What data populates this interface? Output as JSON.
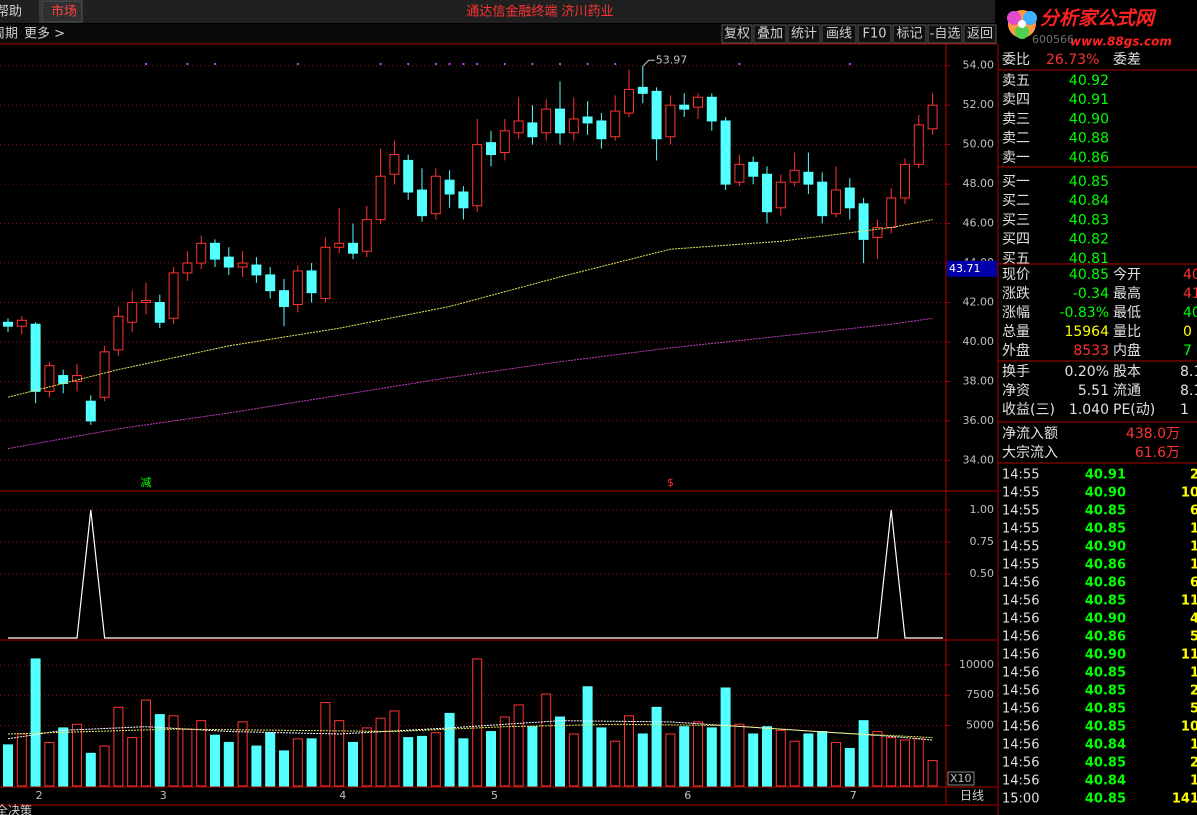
{
  "window": {
    "menu": [
      "帮助",
      "市场"
    ],
    "title": "通达信金融终端 济川药业",
    "logo": "分析家公式网",
    "logo_url": "www.88gs.com",
    "stock_code": "600566"
  },
  "toolbar": {
    "left": [
      "周期",
      "更多 >"
    ],
    "buttons": [
      "复权",
      "叠加",
      "统计",
      "画线",
      "F10",
      "标记",
      "-自选",
      "返回"
    ]
  },
  "chart_data": [
    {
      "type": "candlestick",
      "categories": [
        null,
        null,
        "2",
        null,
        null,
        null,
        null,
        null,
        null,
        null,
        null,
        "3",
        null,
        null,
        null,
        null,
        null,
        null,
        null,
        null,
        null,
        null,
        null,
        null,
        "4",
        null,
        null,
        null,
        null,
        null,
        null,
        null,
        null,
        null,
        null,
        "5",
        null,
        null,
        null,
        null,
        null,
        null,
        null,
        null,
        null,
        null,
        null,
        null,
        null,
        "6",
        null,
        null,
        null,
        null,
        null,
        null,
        null,
        null,
        null,
        null,
        null,
        "7",
        null,
        null,
        null,
        null,
        null,
        null
      ],
      "open": [
        41.0,
        40.8,
        40.9,
        37.5,
        38.3,
        38.0,
        37.0,
        37.2,
        39.6,
        41.0,
        42.0,
        42.0,
        41.2,
        43.5,
        44.0,
        45.0,
        44.3,
        43.8,
        43.9,
        43.4,
        42.6,
        41.9,
        43.6,
        42.2,
        44.8,
        45.0,
        44.6,
        46.2,
        48.5,
        49.2,
        47.7,
        46.5,
        48.2,
        47.6,
        46.9,
        50.1,
        49.6,
        50.6,
        51.1,
        50.6,
        51.8,
        50.6,
        51.4,
        51.2,
        50.4,
        51.6,
        52.9,
        52.7,
        50.4,
        52.0,
        51.9,
        52.4,
        51.2,
        48.1,
        49.1,
        48.5,
        46.8,
        48.1,
        48.6,
        48.1,
        46.5,
        47.8,
        47.0,
        45.3,
        45.8,
        47.3,
        49.0,
        50.8
      ],
      "high": [
        41.2,
        41.3,
        41.0,
        39.0,
        38.6,
        38.9,
        37.3,
        39.8,
        41.8,
        42.6,
        43.0,
        42.4,
        43.8,
        44.6,
        45.4,
        45.2,
        44.8,
        44.6,
        44.3,
        43.8,
        43.2,
        43.9,
        44.0,
        45.3,
        46.8,
        46.0,
        46.9,
        49.8,
        50.2,
        49.5,
        48.8,
        48.8,
        48.7,
        47.9,
        51.3,
        50.7,
        51.3,
        52.4,
        52.0,
        52.3,
        53.2,
        52.4,
        52.2,
        51.6,
        52.5,
        53.8,
        53.97,
        52.9,
        52.5,
        52.6,
        52.6,
        52.6,
        51.4,
        49.5,
        49.4,
        48.9,
        48.5,
        49.6,
        49.6,
        48.6,
        48.9,
        48.3,
        47.3,
        46.2,
        47.8,
        49.3,
        51.5,
        52.6
      ],
      "low": [
        40.5,
        40.4,
        36.9,
        37.2,
        37.4,
        37.5,
        35.8,
        37.0,
        39.3,
        40.5,
        41.4,
        40.7,
        40.9,
        43.1,
        43.7,
        43.8,
        43.4,
        43.3,
        43.0,
        42.2,
        40.8,
        41.5,
        42.0,
        42.0,
        44.5,
        44.2,
        44.3,
        46.0,
        48.0,
        47.2,
        46.1,
        46.2,
        46.8,
        46.2,
        46.6,
        48.9,
        49.2,
        50.3,
        50.0,
        50.2,
        50.0,
        50.2,
        50.5,
        49.8,
        50.2,
        51.4,
        52.1,
        49.2,
        50.0,
        51.4,
        51.3,
        50.7,
        47.7,
        47.9,
        48.0,
        46.0,
        46.4,
        47.9,
        47.5,
        46.0,
        46.3,
        46.2,
        44.0,
        44.2,
        45.5,
        47.0,
        48.8,
        50.5
      ],
      "close": [
        40.8,
        41.1,
        37.5,
        38.8,
        37.9,
        38.3,
        36.0,
        39.5,
        41.3,
        42.0,
        42.1,
        41.0,
        43.5,
        44.0,
        45.0,
        44.2,
        43.8,
        44.0,
        43.4,
        42.6,
        41.8,
        43.6,
        42.5,
        44.8,
        45.0,
        44.5,
        46.2,
        48.4,
        49.5,
        47.6,
        46.4,
        48.4,
        47.5,
        46.8,
        50.0,
        49.5,
        50.7,
        51.2,
        50.4,
        51.8,
        50.6,
        51.3,
        51.1,
        50.3,
        51.7,
        52.8,
        52.6,
        50.3,
        52.0,
        51.8,
        52.4,
        51.2,
        48.0,
        49.0,
        48.4,
        46.6,
        48.1,
        48.7,
        48.0,
        46.4,
        47.7,
        46.8,
        45.2,
        45.8,
        47.3,
        49.0,
        51.0,
        52.0
      ],
      "up_color": "#ff3232",
      "down_color": "#54ffff",
      "series": [
        {
          "color": "#e8e860",
          "x": [
            0,
            8,
            16,
            24,
            32,
            40,
            48,
            56,
            64,
            67
          ],
          "values": [
            37.2,
            38.6,
            39.8,
            40.7,
            41.8,
            43.3,
            44.7,
            45.1,
            45.8,
            46.2
          ]
        },
        {
          "color": "#c040c0",
          "x": [
            0,
            8,
            16,
            24,
            32,
            40,
            48,
            56,
            64,
            67
          ],
          "values": [
            34.6,
            35.6,
            36.4,
            37.3,
            38.2,
            39.0,
            39.7,
            40.3,
            40.9,
            41.2
          ]
        }
      ],
      "ylim": [
        32.5,
        55.1
      ],
      "yticks": [
        {
          "value": 54,
          "label": "54.00"
        },
        {
          "value": 52,
          "label": "52.00"
        },
        {
          "value": 50,
          "label": "50.00"
        },
        {
          "value": 48,
          "label": "48.00"
        },
        {
          "value": 46,
          "label": "46.00"
        },
        {
          "value": 44,
          "label": "44.00"
        },
        {
          "value": 42,
          "label": "42.00"
        },
        {
          "value": 40,
          "label": "40.00"
        },
        {
          "value": 38,
          "label": "38.00"
        },
        {
          "value": 36,
          "label": "36.00"
        },
        {
          "value": 34,
          "label": "34.00"
        }
      ],
      "cursor_price": 43.71,
      "markers": [
        {
          "x": 10,
          "label": "减",
          "color": "#00ff00"
        },
        {
          "x": 48,
          "label": "$",
          "color": "#ff3232"
        }
      ],
      "period": "日线"
    },
    {
      "type": "line",
      "color": "#ffffff",
      "values": [
        0,
        0,
        0,
        0,
        0,
        0,
        1,
        0,
        0,
        0,
        0,
        0,
        0,
        0,
        0,
        0,
        0,
        0,
        0,
        0,
        0,
        0,
        0,
        0,
        0,
        0,
        0,
        0,
        0,
        0,
        0,
        0,
        0,
        0,
        0,
        0,
        0,
        0,
        0,
        0,
        0,
        0,
        0,
        0,
        0,
        0,
        0,
        0,
        0,
        0,
        0,
        0,
        0,
        0,
        0,
        0,
        0,
        0,
        0,
        0,
        0,
        0,
        0,
        0,
        1,
        0,
        0,
        0
      ],
      "ylim": [
        0,
        1.14
      ],
      "yticks": [
        {
          "value": 1,
          "label": "1.00"
        },
        {
          "value": 0.75,
          "label": "0.75"
        },
        {
          "value": 0.5,
          "label": "0.50"
        }
      ]
    },
    {
      "type": "bar",
      "values": [
        3400,
        4300,
        10500,
        3600,
        4800,
        5100,
        2700,
        3300,
        6500,
        4000,
        7100,
        5900,
        5800,
        4700,
        5400,
        4200,
        3600,
        5300,
        3300,
        4400,
        2900,
        3900,
        3900,
        6900,
        5400,
        3600,
        4800,
        5600,
        6200,
        4000,
        4100,
        4400,
        6000,
        3900,
        10500,
        4500,
        5700,
        6700,
        4900,
        7600,
        5700,
        4300,
        8200,
        4800,
        3700,
        5800,
        4300,
        6500,
        4300,
        4900,
        5300,
        4800,
        8100,
        5100,
        4300,
        4900,
        4600,
        3700,
        4300,
        4500,
        3600,
        3100,
        5400,
        4500,
        4000,
        3800,
        3900,
        2100
      ],
      "series": [
        {
          "color": "#ffffff",
          "x": [
            0,
            4,
            10,
            16,
            24,
            32,
            40,
            48,
            56,
            64,
            67
          ],
          "values": [
            3900,
            4600,
            4900,
            4500,
            4300,
            4800,
            5400,
            5300,
            4700,
            4100,
            3800
          ]
        },
        {
          "color": "#e8e860",
          "x": [
            0,
            6,
            12,
            20,
            28,
            36,
            44,
            52,
            60,
            67
          ],
          "values": [
            4300,
            4500,
            4700,
            4600,
            4500,
            4900,
            5100,
            5000,
            4400,
            4000
          ]
        }
      ],
      "ylim": [
        0,
        11900
      ],
      "yticks": [
        10000,
        7500,
        5000
      ],
      "unit_label": "X10"
    }
  ],
  "quote_panel": {
    "ratio": [
      "委比",
      "26.73%",
      "委差"
    ],
    "order_book": [
      [
        "卖五",
        "40.92"
      ],
      [
        "卖四",
        "40.91"
      ],
      [
        "卖三",
        "40.90"
      ],
      [
        "卖二",
        "40.88"
      ],
      [
        "卖一",
        "40.86"
      ],
      [
        "买一",
        "40.85"
      ],
      [
        "买二",
        "40.84"
      ],
      [
        "买三",
        "40.83"
      ],
      [
        "买四",
        "40.82"
      ],
      [
        "买五",
        "40.81"
      ]
    ],
    "stats": [
      [
        "现价",
        "40.85",
        "今开",
        "40"
      ],
      [
        "涨跌",
        "-0.34",
        "最高",
        "41"
      ],
      [
        "涨幅",
        "-0.83%",
        "最低",
        "40"
      ],
      [
        "总量",
        "15964",
        "量比",
        "0"
      ],
      [
        "外盘",
        "8533",
        "内盘",
        "7"
      ]
    ],
    "finance": [
      [
        "换手",
        "0.20%",
        "股本",
        "8.1"
      ],
      [
        "净资",
        "5.51",
        "流通",
        "8.1"
      ],
      [
        "收益(三)",
        "1.040",
        "PE(动)",
        "1"
      ]
    ],
    "flow": [
      [
        "净流入额",
        "438.0万"
      ],
      [
        "大宗流入",
        "61.6万"
      ]
    ]
  },
  "trades": [
    [
      "14:55",
      "40.91",
      "2"
    ],
    [
      "14:55",
      "40.90",
      "10"
    ],
    [
      "14:55",
      "40.85",
      "6"
    ],
    [
      "14:55",
      "40.85",
      "1"
    ],
    [
      "14:55",
      "40.90",
      "1"
    ],
    [
      "14:55",
      "40.86",
      "1"
    ],
    [
      "14:56",
      "40.86",
      "6"
    ],
    [
      "14:56",
      "40.85",
      "11"
    ],
    [
      "14:56",
      "40.90",
      "4"
    ],
    [
      "14:56",
      "40.86",
      "5"
    ],
    [
      "14:56",
      "40.90",
      "11"
    ],
    [
      "14:56",
      "40.85",
      "1"
    ],
    [
      "14:56",
      "40.85",
      "2"
    ],
    [
      "14:56",
      "40.85",
      "5"
    ],
    [
      "14:56",
      "40.85",
      "10"
    ],
    [
      "14:56",
      "40.84",
      "1"
    ],
    [
      "14:56",
      "40.85",
      "2"
    ],
    [
      "14:56",
      "40.84",
      "1"
    ],
    [
      "15:00",
      "40.85",
      "141"
    ]
  ],
  "bottom_tab": "全决策"
}
